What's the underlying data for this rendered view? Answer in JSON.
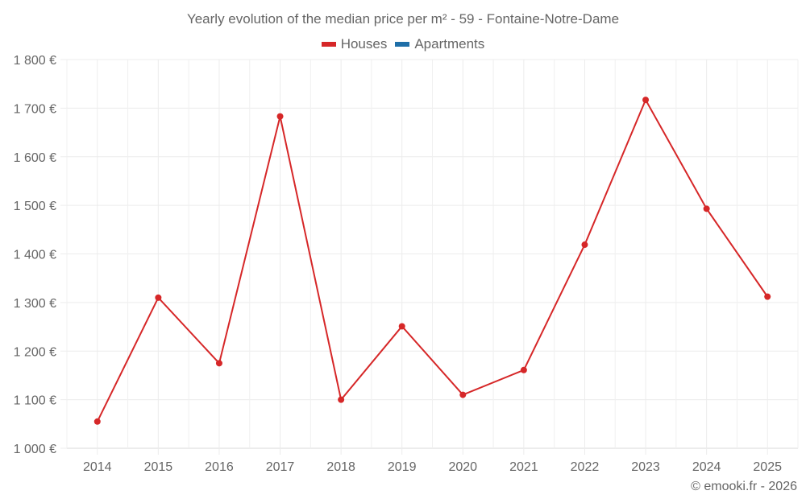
{
  "chart_data": {
    "type": "line",
    "title": "Yearly evolution of the median price per m² - 59 - Fontaine-Notre-Dame",
    "xlabel": "",
    "ylabel": "",
    "categories": [
      "2014",
      "2015",
      "2016",
      "2017",
      "2018",
      "2019",
      "2020",
      "2021",
      "2022",
      "2023",
      "2024",
      "2025"
    ],
    "series": [
      {
        "name": "Houses",
        "color": "#d62728",
        "values": [
          1055,
          1310,
          1175,
          1683,
          1100,
          1251,
          1110,
          1161,
          1419,
          1717,
          1493,
          1312
        ]
      },
      {
        "name": "Apartments",
        "color": "#1f6fa8",
        "values": []
      }
    ],
    "ylim": [
      1000,
      1800
    ],
    "yticks": [
      "1 000 €",
      "1 100 €",
      "1 200 €",
      "1 300 €",
      "1 400 €",
      "1 500 €",
      "1 600 €",
      "1 700 €",
      "1 800 €"
    ],
    "grid": true,
    "legend_position": "top"
  },
  "legend": [
    {
      "label": "Houses",
      "color": "#d62728"
    },
    {
      "label": "Apartments",
      "color": "#1f6fa8"
    }
  ],
  "credit": "© emooki.fr - 2026"
}
